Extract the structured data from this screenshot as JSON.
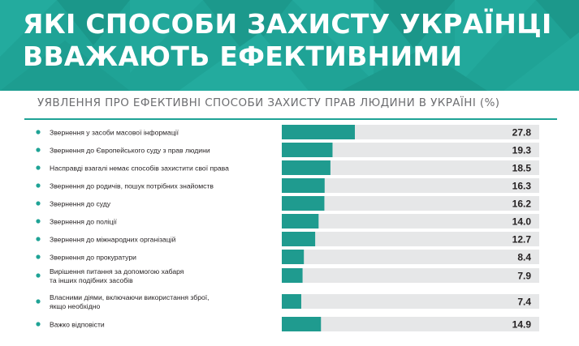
{
  "title": {
    "line1": "ЯКІ СПОСОБИ ЗАХИСТУ УКРАЇНЦІ",
    "line2": "ВВАЖАЮТЬ ЕФЕКТИВНИМИ"
  },
  "colors": {
    "teal": "#1fa396",
    "bar": "#1f9b8f",
    "track": "#e6e7e8",
    "text": "#231f20"
  },
  "chart_data": {
    "type": "bar",
    "orientation": "horizontal",
    "title": "УЯВЛЕННЯ ПРО ЕФЕКТИВНІ СПОСОБИ ЗАХИСТУ ПРАВ ЛЮДИНИ В УКРАЇНІ (%)",
    "categories": [
      [
        "Звернення у засоби масової інформації"
      ],
      [
        "Звернення до Європейського суду з прав людини"
      ],
      [
        "Насправді взагалі немає способів захистити свої права"
      ],
      [
        "Звернення до родичів, пошук потрібних знайомств"
      ],
      [
        "Звернення до суду"
      ],
      [
        "Звернення до поліції"
      ],
      [
        "Звернення до міжнародних організацій"
      ],
      [
        "Звернення до прокуратури"
      ],
      [
        "Вирішення питання за допомогою хабаря",
        "та інших подібних засобів"
      ],
      [
        "Власними діями, включаючи використання зброї,",
        "якщо необхідно"
      ],
      [
        "Важко відповісти"
      ]
    ],
    "values": [
      27.8,
      19.3,
      18.5,
      16.3,
      16.2,
      14.0,
      12.7,
      8.4,
      7.9,
      7.4,
      14.9
    ],
    "value_labels": [
      "27.8",
      "19.3",
      "18.5",
      "16.3",
      "16.2",
      "14.0",
      "12.7",
      "8.4",
      "7.9",
      "7.4",
      "14.9"
    ],
    "xlim": [
      0,
      100
    ],
    "grid": false,
    "legend": "none"
  }
}
